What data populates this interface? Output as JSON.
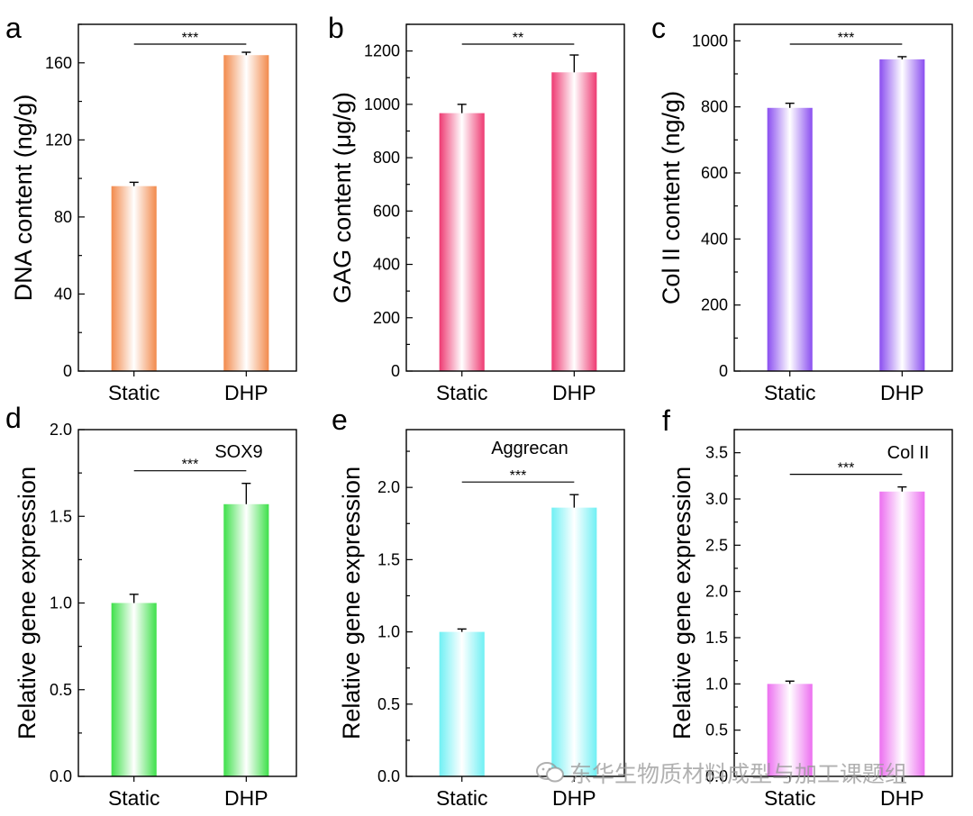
{
  "chart_data": [
    {
      "type": "bar",
      "panel_letter": "a",
      "categories": [
        "Static",
        "DHP"
      ],
      "values": [
        96,
        164
      ],
      "errors": [
        2,
        1.5
      ],
      "ylabel": "DNA content (ng/g)",
      "ylim": [
        0,
        180
      ],
      "yticks": [
        0,
        40,
        80,
        120,
        160
      ],
      "ytick_labels": [
        "0",
        "40",
        "80",
        "120",
        "160"
      ],
      "color": "#f28a4c",
      "significance": "***",
      "annotation": ""
    },
    {
      "type": "bar",
      "panel_letter": "b",
      "categories": [
        "Static",
        "DHP"
      ],
      "values": [
        967,
        1120
      ],
      "errors": [
        33,
        65
      ],
      "ylabel": "GAG content (μg/g)",
      "ylim": [
        0,
        1300
      ],
      "yticks": [
        0,
        200,
        400,
        600,
        800,
        1000,
        1200
      ],
      "ytick_labels": [
        "0",
        "200",
        "400",
        "600",
        "800",
        "1000",
        "1200"
      ],
      "color": "#ee3a72",
      "significance": "**",
      "annotation": ""
    },
    {
      "type": "bar",
      "panel_letter": "c",
      "categories": [
        "Static",
        "DHP"
      ],
      "values": [
        797,
        944
      ],
      "errors": [
        14,
        8
      ],
      "ylabel": "Col II content (ng/g)",
      "ylim": [
        0,
        1050
      ],
      "yticks": [
        0,
        200,
        400,
        600,
        800,
        1000
      ],
      "ytick_labels": [
        "0",
        "200",
        "400",
        "600",
        "800",
        "1000"
      ],
      "color": "#8a4ef0",
      "significance": "***",
      "annotation": ""
    },
    {
      "type": "bar",
      "panel_letter": "d",
      "categories": [
        "Static",
        "DHP"
      ],
      "values": [
        1.0,
        1.57
      ],
      "errors": [
        0.05,
        0.12
      ],
      "ylabel": "Relative gene expression",
      "ylim": [
        0,
        2.0
      ],
      "yticks": [
        0,
        0.5,
        1.0,
        1.5,
        2.0
      ],
      "ytick_labels": [
        "0.0",
        "0.5",
        "1.0",
        "1.5",
        "2.0"
      ],
      "color": "#3ee04a",
      "significance": "***",
      "annotation": "SOX9"
    },
    {
      "type": "bar",
      "panel_letter": "e",
      "categories": [
        "Static",
        "DHP"
      ],
      "values": [
        1.0,
        1.86
      ],
      "errors": [
        0.02,
        0.09
      ],
      "ylabel": "Relative gene expression",
      "ylim": [
        0,
        2.4
      ],
      "yticks": [
        0,
        0.5,
        1.0,
        1.5,
        2.0
      ],
      "ytick_labels": [
        "0.0",
        "0.5",
        "1.0",
        "1.5",
        "2.0"
      ],
      "color": "#6ff0f4",
      "significance": "***",
      "annotation": "Aggrecan"
    },
    {
      "type": "bar",
      "panel_letter": "f",
      "categories": [
        "Static",
        "DHP"
      ],
      "values": [
        1.0,
        3.08
      ],
      "errors": [
        0.03,
        0.05
      ],
      "ylabel": "Relative gene expression",
      "ylim": [
        0,
        3.75
      ],
      "yticks": [
        0,
        0.5,
        1.0,
        1.5,
        2.0,
        2.5,
        3.0,
        3.5
      ],
      "ytick_labels": [
        "0.0",
        "0.5",
        "1.0",
        "1.5",
        "2.0",
        "2.5",
        "3.0",
        "3.5"
      ],
      "color": "#ec6ff0",
      "significance": "***",
      "annotation": "Col II"
    }
  ],
  "watermark_text": "东华生物质材料成型与加工课题组"
}
